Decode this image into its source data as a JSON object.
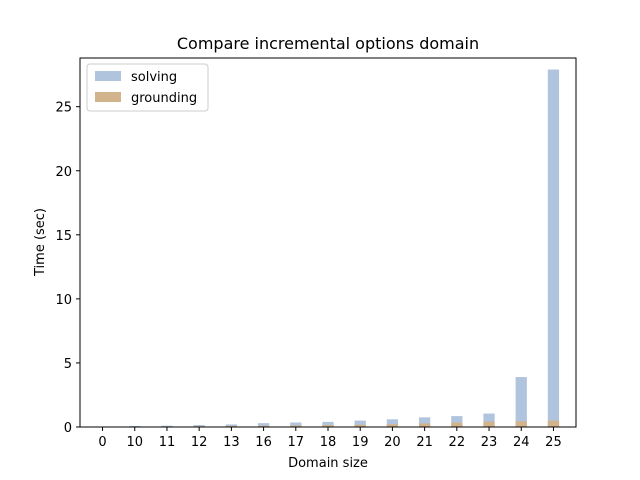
{
  "chart_data": {
    "type": "bar",
    "title": "Compare incremental options domain",
    "xlabel": "Domain size",
    "ylabel": "Time (sec)",
    "categories": [
      "0",
      "10",
      "11",
      "12",
      "13",
      "16",
      "17",
      "18",
      "19",
      "20",
      "21",
      "22",
      "23",
      "24",
      "25"
    ],
    "series": [
      {
        "name": "solving",
        "color": "#b0c4de",
        "values": [
          0.02,
          0.08,
          0.1,
          0.15,
          0.2,
          0.3,
          0.35,
          0.4,
          0.5,
          0.6,
          0.75,
          0.85,
          1.05,
          3.9,
          27.9
        ]
      },
      {
        "name": "grounding",
        "color": "#d2b48c",
        "values": [
          0.01,
          0.03,
          0.05,
          0.06,
          0.08,
          0.1,
          0.12,
          0.15,
          0.18,
          0.22,
          0.28,
          0.35,
          0.42,
          0.45,
          0.5
        ]
      }
    ],
    "ylim": [
      0,
      28.8
    ],
    "yticks": [
      0,
      5,
      10,
      15,
      20,
      25
    ],
    "legend_position": "top-left",
    "grid": false
  }
}
